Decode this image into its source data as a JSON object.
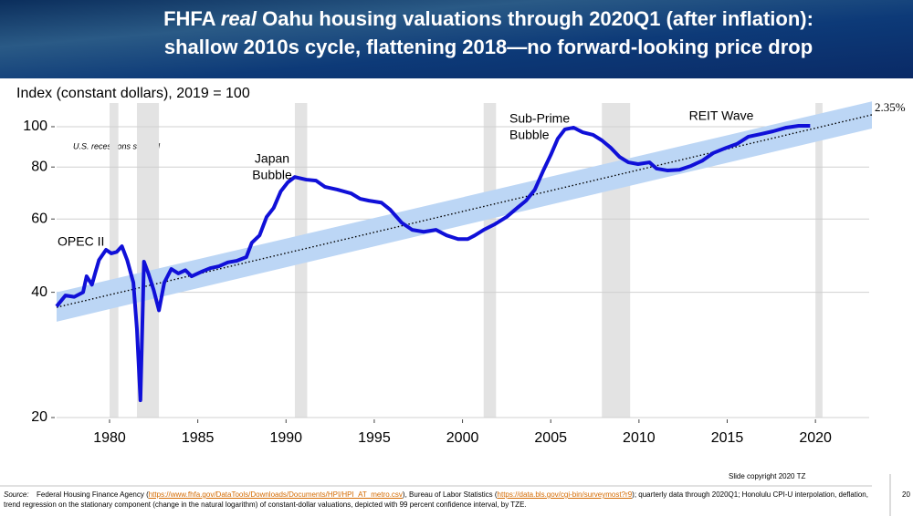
{
  "chart_data": {
    "type": "line",
    "title_parts": [
      "FHFA",
      "real",
      "Oahu housing valuations through 2020Q1 (after inflation):",
      "shallow 2010s cycle, flattening 2018—no forward-looking price drop"
    ],
    "y_label": "Index (constant dollars), 2019 = 100",
    "log_y": true,
    "grid": true,
    "xlim": [
      1977,
      2023.2
    ],
    "ylim": [
      20,
      114
    ],
    "xticks": [
      1980,
      1985,
      1990,
      1995,
      2000,
      2005,
      2010,
      2015,
      2020
    ],
    "yticks": [
      20,
      40,
      60,
      80,
      100
    ],
    "recessions_note": "U.S. recessions shaded",
    "recessions": [
      [
        1980.0,
        1980.5
      ],
      [
        1981.55,
        1982.8
      ],
      [
        1990.5,
        1991.2
      ],
      [
        2001.2,
        2001.9
      ],
      [
        2007.9,
        2009.5
      ],
      [
        2020.0,
        2020.4
      ]
    ],
    "recession_color": "#e3e3e3",
    "trend": {
      "label": "2.35%",
      "x": [
        1977,
        2023.2
      ],
      "values": [
        36.8,
        106.8
      ],
      "lower": [
        34,
        99
      ],
      "upper": [
        40,
        115
      ],
      "band_color": "#bcd6f5"
    },
    "annotations": [
      [
        "OPEC II"
      ],
      [
        "Japan",
        "Bubble"
      ],
      [
        "Sub-Prime",
        "Bubble"
      ],
      [
        "REIT Wave"
      ]
    ],
    "series": [
      {
        "name": "Oahu real HPI",
        "color": "#1010d8",
        "x": [
          1977.0,
          1977.5,
          1978.0,
          1978.5,
          1978.7,
          1979.0,
          1979.2,
          1979.4,
          1979.8,
          1980.1,
          1980.4,
          1980.7,
          1981.0,
          1981.35,
          1981.55,
          1981.75,
          1981.95,
          1982.2,
          1982.5,
          1982.8,
          1983.1,
          1983.5,
          1983.9,
          1984.3,
          1984.65,
          1985.2,
          1985.7,
          1986.2,
          1986.7,
          1987.2,
          1987.75,
          1988.06,
          1988.5,
          1988.9,
          1989.3,
          1989.7,
          1990.1,
          1990.5,
          1991.15,
          1991.7,
          1992.2,
          1992.9,
          1993.7,
          1994.2,
          1994.7,
          1995.4,
          1995.9,
          1996.55,
          1997.15,
          1997.8,
          1998.5,
          1999.1,
          1999.75,
          2000.3,
          2000.7,
          2001.2,
          2001.8,
          2002.5,
          2003.1,
          2003.6,
          2004.1,
          2004.6,
          2005.0,
          2005.4,
          2005.8,
          2006.3,
          2006.8,
          2007.4,
          2007.9,
          2008.4,
          2008.9,
          2009.4,
          2009.95,
          2010.6,
          2011.0,
          2011.6,
          2012.3,
          2012.95,
          2013.6,
          2014.2,
          2014.95,
          2015.55,
          2016.2,
          2016.9,
          2017.6,
          2018.35,
          2019.05,
          2019.7
        ],
        "values": [
          37,
          39.3,
          39,
          40,
          43.7,
          41.7,
          44.7,
          47.8,
          50.6,
          49.6,
          50,
          51.6,
          47.8,
          42.2,
          32.7,
          22,
          47.4,
          44.4,
          40.5,
          36.2,
          42.2,
          45.5,
          44.4,
          45.2,
          43.7,
          44.8,
          45.7,
          46.2,
          47.2,
          47.6,
          48.6,
          52.6,
          54.8,
          60.7,
          63.8,
          69.9,
          73.5,
          75.7,
          74.6,
          74.2,
          71.7,
          70.6,
          69.1,
          67.1,
          66.4,
          65.7,
          63.2,
          58.8,
          56.5,
          55.9,
          56.5,
          54.8,
          53.7,
          53.7,
          54.8,
          56.5,
          58.2,
          60.7,
          63.8,
          66.4,
          70.6,
          78.8,
          85.5,
          93.6,
          98.5,
          99.5,
          97,
          95.6,
          92.7,
          89,
          84.6,
          82.1,
          81.3,
          82.1,
          79.3,
          78.5,
          78.8,
          80.5,
          82.9,
          86.4,
          89,
          90.9,
          94.6,
          96,
          97.5,
          99.5,
          100.5,
          100.5
        ]
      }
    ]
  },
  "footer": {
    "copyright": "Slide copyright 2020 TZ",
    "page": "20",
    "source_label": "Source:",
    "source_parts": [
      "Federal Housing Finance Agency (",
      "https://www.fhfa.gov/DataTools/Downloads/Documents/HPI/HPI_AT_metro.csv",
      "), Bureau of Labor Statistics (",
      "https://data.bls.gov/cgi-bin/surveymost?r9",
      "); quarterly data through 2020Q1; Honolulu CPI-U interpolation, deflation, trend regression on the stationary component (change in the natural logarithm) of constant-dollar valuations, depicted with 99 percent confidence interval, by TZE."
    ]
  }
}
